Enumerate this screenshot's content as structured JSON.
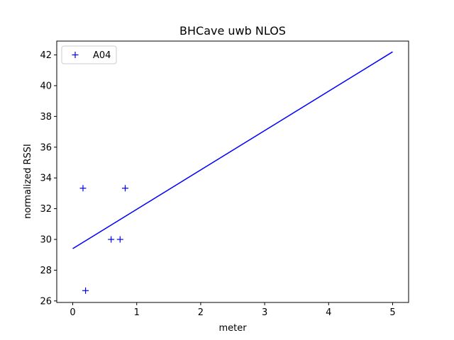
{
  "chart_data": {
    "type": "scatter",
    "title": "BHCave uwb NLOS",
    "xlabel": "meter",
    "ylabel": "normalized RSSI",
    "xlim": [
      -0.25,
      5.25
    ],
    "ylim": [
      25.9,
      42.9
    ],
    "xticks": [
      0,
      1,
      2,
      3,
      4,
      5
    ],
    "yticks": [
      26,
      28,
      30,
      32,
      34,
      36,
      38,
      40,
      42
    ],
    "grid": false,
    "legend_position": "top-left",
    "color": "#0000ff",
    "series": [
      {
        "name": "A04",
        "marker": "+",
        "points": [
          {
            "x": 0.16,
            "y": 33.33
          },
          {
            "x": 0.2,
            "y": 26.67
          },
          {
            "x": 0.6,
            "y": 30.0
          },
          {
            "x": 0.74,
            "y": 30.0
          },
          {
            "x": 0.82,
            "y": 33.33
          }
        ]
      }
    ],
    "fit_line": {
      "x": [
        0,
        5
      ],
      "y": [
        29.4,
        42.2
      ]
    }
  }
}
